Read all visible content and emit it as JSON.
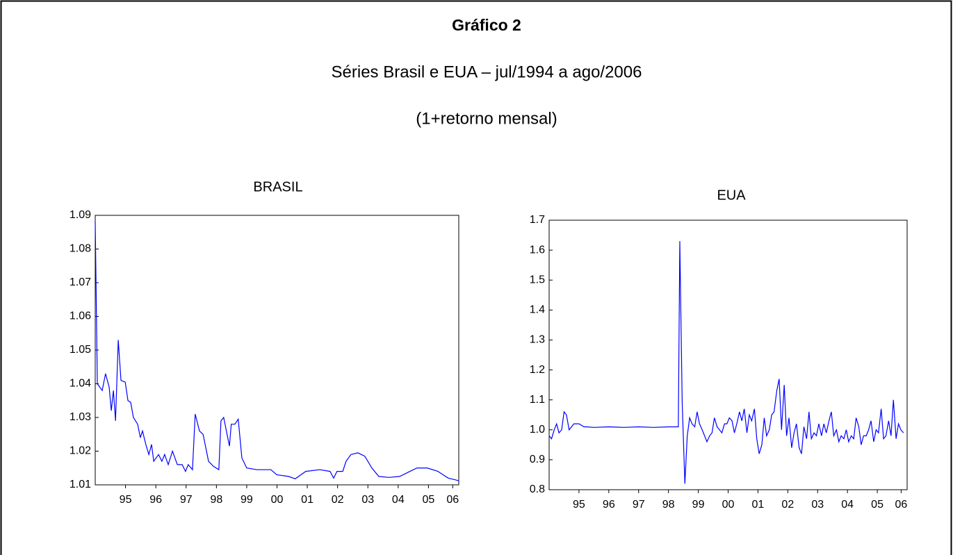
{
  "title": "Gráfico 2",
  "subtitle": "Séries Brasil e EUA – jul/1994 a ago/2006",
  "note": "(1+retorno mensal)",
  "chart_data": [
    {
      "type": "line",
      "title": "BRASIL",
      "color": "#0000ff",
      "grid": false,
      "x": [
        1994.5,
        1994.57,
        1994.73,
        1994.84,
        1994.96,
        1995.03,
        1995.1,
        1995.17,
        1995.26,
        1995.35,
        1995.49,
        1995.58,
        1995.67,
        1995.76,
        1995.9,
        1995.99,
        1996.06,
        1996.17,
        1996.27,
        1996.36,
        1996.43,
        1996.59,
        1996.7,
        1996.79,
        1996.91,
        1997.05,
        1997.21,
        1997.37,
        1997.48,
        1997.57,
        1997.71,
        1997.8,
        1997.94,
        1998.06,
        1998.24,
        1998.4,
        1998.58,
        1998.65,
        1998.74,
        1998.93,
        1998.99,
        1999.11,
        1999.22,
        1999.34,
        1999.5,
        1999.84,
        2000.3,
        2000.49,
        2000.88,
        2001.1,
        2001.45,
        2001.91,
        2002.25,
        2002.37,
        2002.48,
        2002.67,
        2002.78,
        2002.94,
        2003.17,
        2003.4,
        2003.63,
        2003.86,
        2004.2,
        2004.55,
        2004.89,
        2005.12,
        2005.46,
        2005.81,
        2006.15,
        2006.38,
        2006.5
      ],
      "values": [
        1.088,
        1.04,
        1.038,
        1.043,
        1.039,
        1.032,
        1.038,
        1.029,
        1.053,
        1.041,
        1.0405,
        1.035,
        1.0345,
        1.03,
        1.028,
        1.024,
        1.026,
        1.022,
        1.019,
        1.022,
        1.017,
        1.019,
        1.017,
        1.019,
        1.016,
        1.02,
        1.016,
        1.016,
        1.014,
        1.016,
        1.0145,
        1.031,
        1.026,
        1.025,
        1.017,
        1.0155,
        1.0145,
        1.029,
        1.03,
        1.0215,
        1.028,
        1.028,
        1.0295,
        1.018,
        1.015,
        1.0145,
        1.0145,
        1.013,
        1.0125,
        1.0118,
        1.014,
        1.0145,
        1.014,
        1.012,
        1.014,
        1.014,
        1.017,
        1.019,
        1.0195,
        1.0185,
        1.015,
        1.0125,
        1.0122,
        1.0125,
        1.014,
        1.015,
        1.015,
        1.014,
        1.012,
        1.0115,
        1.0112
      ],
      "xlim": [
        1994.5,
        2006.5
      ],
      "xticks": [
        {
          "value": 1995.5,
          "label": "95"
        },
        {
          "value": 1996.5,
          "label": "96"
        },
        {
          "value": 1997.5,
          "label": "97"
        },
        {
          "value": 1998.5,
          "label": "98"
        },
        {
          "value": 1999.5,
          "label": "99"
        },
        {
          "value": 2000.5,
          "label": "00"
        },
        {
          "value": 2001.5,
          "label": "01"
        },
        {
          "value": 2002.5,
          "label": "02"
        },
        {
          "value": 2003.5,
          "label": "03"
        },
        {
          "value": 2004.5,
          "label": "04"
        },
        {
          "value": 2005.5,
          "label": "05"
        },
        {
          "value": 2006.3,
          "label": "06"
        }
      ],
      "ylim": [
        1.01,
        1.09
      ],
      "yticks": [
        1.01,
        1.02,
        1.03,
        1.04,
        1.05,
        1.06,
        1.07,
        1.08,
        1.09
      ]
    },
    {
      "type": "line",
      "title": "EUA",
      "color": "#0000ff",
      "grid": false,
      "x": [
        1994.5,
        1994.58,
        1994.67,
        1994.75,
        1994.83,
        1994.92,
        1995.0,
        1995.08,
        1995.17,
        1995.25,
        1995.33,
        1995.5,
        1995.67,
        1995.75,
        1996.0,
        1996.5,
        1997.0,
        1997.5,
        1998.0,
        1998.5,
        1998.75,
        1998.83,
        1998.88,
        1998.96,
        1999.05,
        1999.13,
        1999.21,
        1999.29,
        1999.38,
        1999.46,
        1999.54,
        1999.63,
        1999.71,
        1999.79,
        1999.88,
        1999.96,
        2000.04,
        2000.13,
        2000.21,
        2000.29,
        2000.38,
        2000.46,
        2000.54,
        2000.63,
        2000.71,
        2000.79,
        2000.88,
        2000.96,
        2001.04,
        2001.13,
        2001.21,
        2001.29,
        2001.38,
        2001.46,
        2001.54,
        2001.63,
        2001.71,
        2001.79,
        2001.88,
        2001.96,
        2002.04,
        2002.13,
        2002.21,
        2002.29,
        2002.38,
        2002.46,
        2002.54,
        2002.63,
        2002.71,
        2002.79,
        2002.88,
        2002.96,
        2003.04,
        2003.13,
        2003.21,
        2003.29,
        2003.38,
        2003.46,
        2003.54,
        2003.63,
        2003.71,
        2003.79,
        2003.88,
        2003.96,
        2004.04,
        2004.13,
        2004.21,
        2004.29,
        2004.38,
        2004.46,
        2004.54,
        2004.63,
        2004.71,
        2004.79,
        2004.88,
        2004.96,
        2005.04,
        2005.13,
        2005.21,
        2005.29,
        2005.38,
        2005.46,
        2005.54,
        2005.63,
        2005.71,
        2005.79,
        2005.88,
        2005.96,
        2006.04,
        2006.13,
        2006.21,
        2006.29,
        2006.38
      ],
      "values": [
        0.98,
        0.97,
        1.0,
        1.02,
        0.99,
        1.0,
        1.06,
        1.05,
        1.0,
        1.01,
        1.02,
        1.02,
        1.01,
        1.01,
        1.008,
        1.01,
        1.008,
        1.01,
        1.008,
        1.01,
        1.01,
        1.01,
        1.63,
        1.09,
        0.82,
        0.98,
        1.04,
        1.02,
        1.01,
        1.06,
        1.02,
        1.0,
        0.98,
        0.96,
        0.98,
        0.99,
        1.04,
        1.01,
        1.0,
        0.99,
        1.02,
        1.02,
        1.04,
        1.03,
        0.99,
        1.02,
        1.06,
        1.03,
        1.07,
        0.99,
        1.05,
        1.03,
        1.07,
        0.97,
        0.92,
        0.95,
        1.04,
        0.98,
        1.0,
        1.05,
        1.06,
        1.13,
        1.17,
        1.0,
        1.15,
        0.98,
        1.04,
        0.94,
        0.99,
        1.02,
        0.94,
        0.92,
        1.01,
        0.97,
        1.06,
        0.97,
        0.99,
        0.98,
        1.02,
        0.98,
        1.02,
        0.99,
        1.03,
        1.06,
        0.98,
        1.0,
        0.96,
        0.98,
        0.97,
        1.0,
        0.96,
        0.98,
        0.97,
        1.04,
        1.01,
        0.95,
        0.98,
        0.98,
        1.0,
        1.03,
        0.96,
        1.0,
        0.99,
        1.07,
        0.97,
        0.98,
        1.03,
        0.98,
        1.1,
        0.97,
        1.02,
        1.0,
        0.99
      ],
      "xlim": [
        1994.5,
        2006.5
      ],
      "xticks": [
        {
          "value": 1995.5,
          "label": "95"
        },
        {
          "value": 1996.5,
          "label": "96"
        },
        {
          "value": 1997.5,
          "label": "97"
        },
        {
          "value": 1998.5,
          "label": "98"
        },
        {
          "value": 1999.5,
          "label": "99"
        },
        {
          "value": 2000.5,
          "label": "00"
        },
        {
          "value": 2001.5,
          "label": "01"
        },
        {
          "value": 2002.5,
          "label": "02"
        },
        {
          "value": 2003.5,
          "label": "03"
        },
        {
          "value": 2004.5,
          "label": "04"
        },
        {
          "value": 2005.5,
          "label": "05"
        },
        {
          "value": 2006.3,
          "label": "06"
        }
      ],
      "ylim": [
        0.8,
        1.7
      ],
      "yticks": [
        0.8,
        0.9,
        {
          "value": 1,
          "label": "1.0"
        },
        1.1,
        1.2,
        1.3,
        1.4,
        1.5,
        1.6,
        1.7
      ]
    }
  ]
}
